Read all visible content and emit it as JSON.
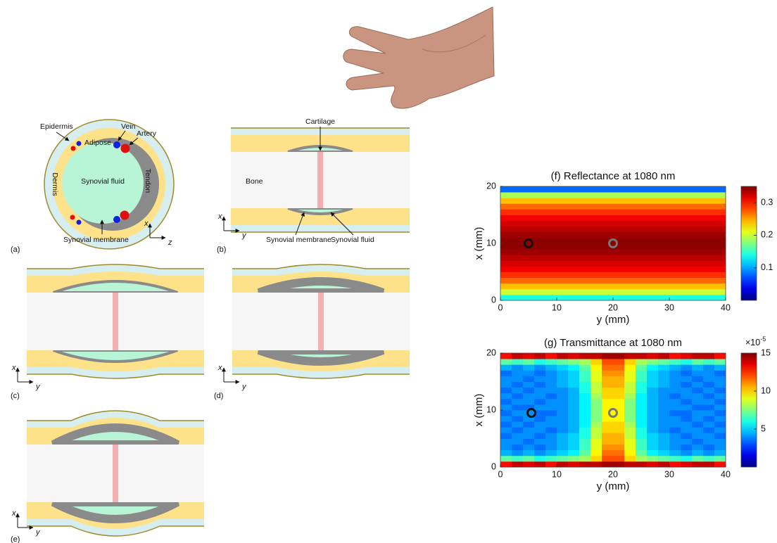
{
  "diagrams": {
    "a": {
      "label": "(a)",
      "epidermis": "Epidermis",
      "vein": "Vein",
      "artery": "Artery",
      "adipose": "Adipose",
      "dermis": "Dermis",
      "synovial_fluid": "Synovial fluid",
      "tendon": "Tendon",
      "synovial_membrane": "Synovial membrane",
      "axis_1": "x",
      "axis_2": "z"
    },
    "b": {
      "label": "(b)",
      "cartilage": "Cartilage",
      "bone": "Bone",
      "synovial_membrane": "Synovial membrane",
      "synovial_fluid": "Synovial fluid",
      "axis_1": "x",
      "axis_2": "y"
    },
    "c": {
      "label": "(c)",
      "axis_1": "x",
      "axis_2": "y"
    },
    "d": {
      "label": "(d)",
      "axis_1": "x",
      "axis_2": "y"
    },
    "e": {
      "label": "(e)",
      "axis_1": "x",
      "axis_2": "y"
    }
  },
  "chart_data": [
    {
      "type": "heatmap",
      "title": "(f) Reflectance at 1080 nm",
      "x_label": "y (mm)",
      "y_label": "x (mm)",
      "xlim": [
        0,
        40
      ],
      "ylim": [
        0,
        20
      ],
      "xticks": [
        0,
        10,
        20,
        30,
        40
      ],
      "yticks": [
        0,
        10,
        20
      ],
      "clim": [
        0,
        0.35
      ],
      "cticks": [
        0.1,
        0.2,
        0.3
      ],
      "values": [
        [
          0.14
        ],
        [
          0.2
        ],
        [
          0.24
        ],
        [
          0.27
        ],
        [
          0.29
        ],
        [
          0.31
        ],
        [
          0.32
        ],
        [
          0.33
        ],
        [
          0.34
        ],
        [
          0.345
        ],
        [
          0.345
        ],
        [
          0.34
        ],
        [
          0.33
        ],
        [
          0.32
        ],
        [
          0.31
        ],
        [
          0.29
        ],
        [
          0.27
        ],
        [
          0.24
        ],
        [
          0.19
        ],
        [
          0.08
        ]
      ],
      "markers": [
        {
          "x": 5,
          "y": 10,
          "color": "#111111"
        },
        {
          "x": 20,
          "y": 10,
          "color": "#777777"
        }
      ]
    },
    {
      "type": "heatmap",
      "title": "(g) Transmittance at 1080 nm",
      "x_label": "y (mm)",
      "y_label": "x (mm)",
      "xlim": [
        0,
        40
      ],
      "ylim": [
        0,
        20
      ],
      "xticks": [
        0,
        10,
        20,
        30,
        40
      ],
      "yticks": [
        0,
        10,
        20
      ],
      "clim": [
        0,
        15
      ],
      "cticks": [
        5,
        10,
        15
      ],
      "scale_base": "×10",
      "scale_exponent": "-5",
      "values": [
        [
          13,
          14,
          13.5,
          14,
          13,
          14,
          13.5,
          14,
          14,
          14.5,
          14.5,
          14,
          14,
          13.5,
          14,
          13,
          13.5,
          14,
          14,
          13
        ],
        [
          7,
          6.5,
          7,
          6,
          6.5,
          7,
          7.5,
          8,
          10,
          12,
          12,
          10,
          8,
          7.5,
          7,
          6.5,
          6,
          7,
          6.5,
          7
        ],
        [
          4.5,
          4,
          4.5,
          4,
          4.5,
          5,
          5.5,
          7,
          9.5,
          11.5,
          11.5,
          9.5,
          7,
          5.5,
          5,
          4.5,
          4,
          4.5,
          4,
          4.5
        ],
        [
          4,
          3.5,
          4,
          3.5,
          4,
          4.5,
          5,
          6.5,
          9,
          11,
          11,
          9,
          6.5,
          5,
          4.5,
          4,
          3.5,
          4,
          3.5,
          4
        ],
        [
          4,
          4,
          3.5,
          4,
          4,
          4.5,
          5,
          6.5,
          9,
          10.5,
          10.5,
          9,
          6.5,
          5,
          4.5,
          4,
          4,
          3.5,
          4,
          4
        ],
        [
          3.5,
          4,
          4,
          3.5,
          4,
          4.5,
          5,
          6,
          8.5,
          10.5,
          10.5,
          8.5,
          6,
          5,
          4.5,
          4,
          3.5,
          4,
          4,
          3.5
        ],
        [
          4,
          3.5,
          4,
          4,
          3.5,
          4,
          4.5,
          6,
          8.5,
          10,
          10,
          8.5,
          6,
          4.5,
          4,
          3.5,
          4,
          4,
          3.5,
          4
        ],
        [
          3.5,
          4,
          3.5,
          4,
          4,
          4,
          4.5,
          5.5,
          8,
          10,
          10,
          8,
          5.5,
          4.5,
          4,
          4,
          4,
          3.5,
          4,
          3.5
        ],
        [
          4,
          3.5,
          4,
          3.5,
          4,
          4,
          4.5,
          5.5,
          7.5,
          9.5,
          9.5,
          7.5,
          5.5,
          4.5,
          4,
          4,
          3.5,
          4,
          3.5,
          4
        ],
        [
          3.5,
          4,
          4,
          3.5,
          3.5,
          4,
          4.5,
          5.5,
          7.5,
          9.5,
          9.5,
          7.5,
          5.5,
          4.5,
          4,
          3.5,
          3.5,
          4,
          4,
          3.5
        ],
        [
          4,
          3.5,
          3.5,
          4,
          4,
          4,
          4.5,
          5.5,
          7.5,
          9.5,
          9.5,
          7.5,
          5.5,
          4.5,
          4,
          4,
          4,
          3.5,
          3.5,
          4
        ],
        [
          3.5,
          4,
          4,
          3.5,
          4,
          4,
          4.5,
          5.5,
          7.5,
          9.5,
          9.5,
          7.5,
          5.5,
          4.5,
          4,
          4,
          3.5,
          4,
          4,
          3.5
        ],
        [
          4,
          3.5,
          4,
          4,
          3.5,
          4,
          4.5,
          5.5,
          8,
          10,
          10,
          8,
          5.5,
          4.5,
          4,
          3.5,
          4,
          4,
          3.5,
          4
        ],
        [
          3.5,
          4,
          3.5,
          4,
          4,
          4,
          4.5,
          6,
          8.5,
          10,
          10,
          8.5,
          6,
          4.5,
          4,
          4,
          4,
          3.5,
          4,
          3.5
        ],
        [
          4,
          3.5,
          4,
          3.5,
          4,
          4.5,
          5,
          6,
          8.5,
          10.5,
          10.5,
          8.5,
          6,
          5,
          4.5,
          4,
          3.5,
          4,
          3.5,
          4
        ],
        [
          4,
          4,
          3.5,
          4,
          4,
          4.5,
          5,
          6.5,
          9,
          10.5,
          10.5,
          9,
          6.5,
          5,
          4.5,
          4,
          4,
          3.5,
          4,
          4
        ],
        [
          3.5,
          4,
          4,
          3.5,
          4,
          4.5,
          5,
          6.5,
          9,
          11,
          11,
          9,
          6.5,
          5,
          4.5,
          4,
          3.5,
          4,
          4,
          3.5
        ],
        [
          4.5,
          4,
          4.5,
          4,
          4.5,
          5,
          5.5,
          7,
          9.5,
          11.5,
          11.5,
          9.5,
          7,
          5.5,
          5,
          4.5,
          4,
          4.5,
          4,
          4.5
        ],
        [
          7,
          6.5,
          7,
          6,
          6.5,
          7,
          7.5,
          8,
          10,
          12,
          12,
          10,
          8,
          7.5,
          7,
          6.5,
          6,
          7,
          6.5,
          7
        ],
        [
          13,
          14,
          13.5,
          14,
          13,
          14,
          13.5,
          14,
          14,
          14.5,
          14.5,
          14,
          14,
          13.5,
          14,
          13,
          13.5,
          14,
          14,
          13
        ]
      ],
      "markers": [
        {
          "x": 5.5,
          "y": 9.5,
          "color": "#111111"
        },
        {
          "x": 20,
          "y": 9.5,
          "color": "#777777"
        }
      ]
    }
  ]
}
